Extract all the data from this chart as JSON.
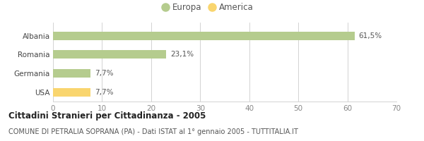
{
  "categories": [
    "Albania",
    "Romania",
    "Germania",
    "USA"
  ],
  "values": [
    61.5,
    23.1,
    7.7,
    7.7
  ],
  "labels": [
    "61,5%",
    "23,1%",
    "7,7%",
    "7,7%"
  ],
  "bar_colors": [
    "#b5cc8e",
    "#b5cc8e",
    "#b5cc8e",
    "#f9d56e"
  ],
  "legend": [
    {
      "label": "Europa",
      "color": "#b5cc8e"
    },
    {
      "label": "America",
      "color": "#f9d56e"
    }
  ],
  "xlim": [
    0,
    70
  ],
  "xticks": [
    0,
    10,
    20,
    30,
    40,
    50,
    60,
    70
  ],
  "title": "Cittadini Stranieri per Cittadinanza - 2005",
  "subtitle": "COMUNE DI PETRALIA SOPRANA (PA) - Dati ISTAT al 1° gennaio 2005 - TUTTITALIA.IT",
  "background_color": "#ffffff",
  "grid_color": "#cccccc",
  "title_fontsize": 8.5,
  "subtitle_fontsize": 7,
  "label_fontsize": 7.5,
  "tick_fontsize": 7.5,
  "legend_fontsize": 8.5
}
